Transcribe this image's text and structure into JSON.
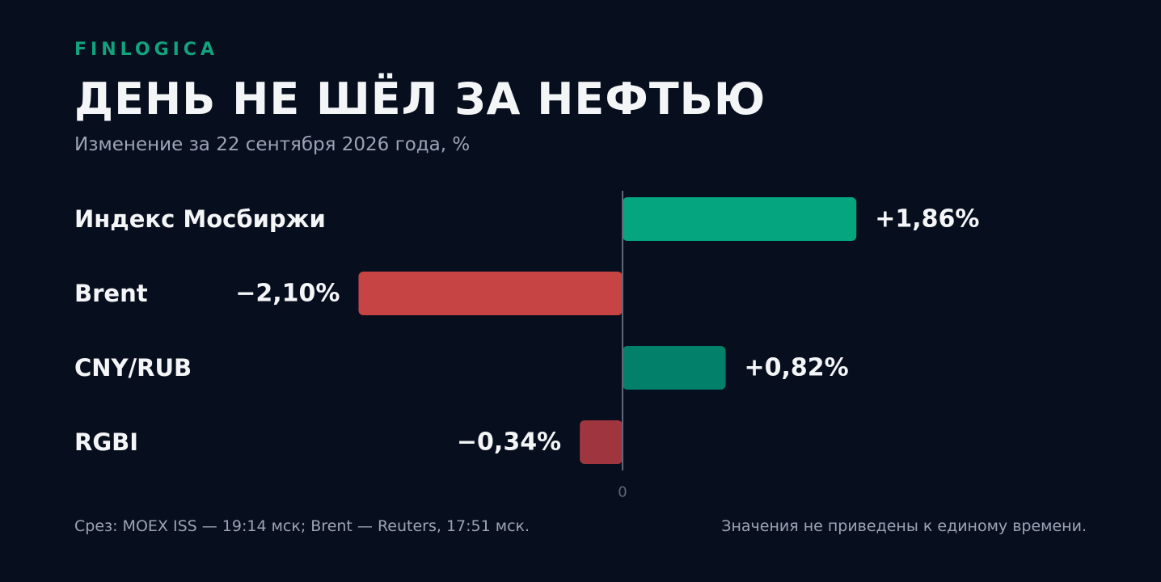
{
  "brand": "FINLOGICA",
  "title": "ДЕНЬ НЕ ШЁЛ ЗА НЕФТЬЮ",
  "subtitle": "Изменение за 22 сентября 2026 года, %",
  "footer": {
    "source": "Срез: MOEX ISS — 19:14 мск; Brent — Reuters, 17:51 мск.",
    "note": "Значения не приведены к единому времени."
  },
  "colors": {
    "background": "#070e1e",
    "brand": "#12a27e",
    "text": "#f4f5f7",
    "muted": "#9aa5b5",
    "axis": "#5f6878",
    "positive_strong": "#04a57f",
    "positive_soft": "#038069",
    "negative_strong": "#c64444",
    "negative_soft": "#9f363f"
  },
  "chart_data": {
    "type": "bar",
    "orientation": "horizontal",
    "categories": [
      "Индекс Мосбиржи",
      "Brent",
      "CNY/RUB",
      "RGBI"
    ],
    "values": [
      1.86,
      -2.1,
      0.82,
      -0.34
    ],
    "value_labels": [
      "+1,86%",
      "−2,10%",
      "+0,82%",
      "−0,34%"
    ],
    "bar_colors": [
      "#04a57f",
      "#c64444",
      "#038069",
      "#9f363f"
    ],
    "zero_label": "0",
    "xlim": [
      -2.1,
      1.86
    ],
    "grid": false
  }
}
